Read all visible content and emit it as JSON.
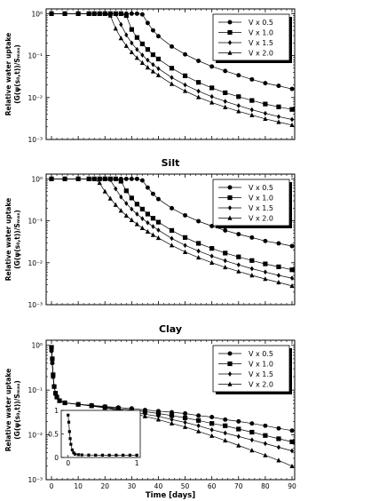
{
  "chart_data": [
    {
      "type": "line",
      "title": "",
      "xlabel": "",
      "ylabel": "Relative water uptake",
      "ylabel2": "(G(ψ(s₀,t))/Sₘₐₓ)",
      "yscale": "log",
      "xlim": [
        -2,
        91
      ],
      "ylim": [
        0.001,
        1.3
      ],
      "yticks": [
        "10⁻³",
        "10⁻²",
        "10⁻¹",
        "10⁰"
      ],
      "legend_position": "top-right",
      "x": [
        0,
        5,
        10,
        14,
        16,
        18,
        20,
        22,
        24,
        26,
        28,
        30,
        32,
        34,
        36,
        38,
        40,
        45,
        50,
        55,
        60,
        65,
        70,
        75,
        80,
        85,
        90
      ],
      "series": [
        {
          "name": "V x 0.5",
          "marker": "circle",
          "values": [
            1,
            1,
            1,
            1,
            1,
            1,
            1,
            1,
            1,
            1,
            1,
            1,
            1,
            0.96,
            0.6,
            0.4,
            0.29,
            0.165,
            0.107,
            0.075,
            0.055,
            0.043,
            0.034,
            0.027,
            0.022,
            0.019,
            0.016
          ]
        },
        {
          "name": "V x 1.0",
          "marker": "square",
          "values": [
            1,
            1,
            1,
            1,
            1,
            1,
            1,
            1,
            1,
            1,
            0.9,
            0.42,
            0.27,
            0.19,
            0.14,
            0.105,
            0.083,
            0.05,
            0.033,
            0.023,
            0.017,
            0.013,
            0.0105,
            0.0085,
            0.007,
            0.006,
            0.0052
          ]
        },
        {
          "name": "V x 1.5",
          "marker": "diamond",
          "values": [
            1,
            1,
            1,
            1,
            1,
            1,
            1,
            1,
            0.98,
            0.55,
            0.31,
            0.2,
            0.14,
            0.103,
            0.078,
            0.061,
            0.049,
            0.03,
            0.02,
            0.0142,
            0.0105,
            0.0081,
            0.0064,
            0.0051,
            0.0042,
            0.0035,
            0.003
          ]
        },
        {
          "name": "V x 2.0",
          "marker": "triangle",
          "values": [
            1,
            1,
            1,
            1,
            1,
            1,
            1,
            0.9,
            0.44,
            0.26,
            0.17,
            0.12,
            0.088,
            0.067,
            0.052,
            0.042,
            0.034,
            0.021,
            0.0143,
            0.0102,
            0.0076,
            0.0059,
            0.0047,
            0.0038,
            0.0031,
            0.0026,
            0.0022
          ]
        }
      ]
    },
    {
      "type": "line",
      "title": "Silt",
      "xlabel": "",
      "ylabel": "Relative water uptake",
      "ylabel2": "(G(ψ(s₀,t))/Sₘₐₓ)",
      "yscale": "log",
      "xlim": [
        -2,
        91
      ],
      "ylim": [
        0.001,
        1.3
      ],
      "yticks": [
        "10⁻³",
        "10⁻²",
        "10⁻¹",
        "10⁰"
      ],
      "legend_position": "top-right",
      "x": [
        0,
        5,
        10,
        14,
        16,
        18,
        20,
        22,
        24,
        26,
        28,
        30,
        32,
        34,
        36,
        38,
        40,
        45,
        50,
        55,
        60,
        65,
        70,
        75,
        80,
        85,
        90
      ],
      "series": [
        {
          "name": "V x 0.5",
          "marker": "circle",
          "values": [
            1,
            1,
            1,
            1,
            1,
            1,
            1,
            1,
            1,
            1,
            1,
            1,
            1,
            0.92,
            0.62,
            0.44,
            0.33,
            0.2,
            0.135,
            0.098,
            0.075,
            0.059,
            0.048,
            0.04,
            0.033,
            0.029,
            0.025
          ]
        },
        {
          "name": "V x 1.0",
          "marker": "square",
          "values": [
            1,
            1,
            1,
            1,
            1,
            1,
            1,
            1,
            1,
            0.88,
            0.52,
            0.35,
            0.25,
            0.19,
            0.145,
            0.115,
            0.093,
            0.059,
            0.04,
            0.029,
            0.022,
            0.017,
            0.0138,
            0.0113,
            0.0094,
            0.008,
            0.0068
          ]
        },
        {
          "name": "V x 1.5",
          "marker": "diamond",
          "values": [
            1,
            1,
            1,
            1,
            1,
            1,
            1,
            0.95,
            0.58,
            0.37,
            0.26,
            0.19,
            0.145,
            0.113,
            0.09,
            0.073,
            0.06,
            0.038,
            0.026,
            0.019,
            0.0144,
            0.0112,
            0.0089,
            0.0072,
            0.006,
            0.005,
            0.0043
          ]
        },
        {
          "name": "V x 2.0",
          "marker": "triangle",
          "values": [
            1,
            1,
            1,
            1,
            1,
            0.8,
            0.5,
            0.34,
            0.24,
            0.175,
            0.133,
            0.104,
            0.083,
            0.067,
            0.055,
            0.046,
            0.039,
            0.026,
            0.018,
            0.0133,
            0.01,
            0.0078,
            0.0062,
            0.005,
            0.0041,
            0.0034,
            0.0028
          ]
        }
      ]
    },
    {
      "type": "line",
      "title": "Clay",
      "xlabel": "Time [days]",
      "ylabel": "Relative water uptake",
      "ylabel2": "(G(ψ(s₀,t))/Sₘₐₓ)",
      "yscale": "log",
      "xlim": [
        -2,
        91
      ],
      "ylim": [
        0.001,
        1.3
      ],
      "yticks": [
        "10⁻³",
        "10⁻²",
        "10⁻¹",
        "10⁰"
      ],
      "xticks": [
        "0",
        "10",
        "20",
        "30",
        "40",
        "50",
        "60",
        "70",
        "80",
        "90"
      ],
      "legend_position": "top-right",
      "x": [
        0,
        0.3,
        0.6,
        1,
        1.5,
        2,
        3,
        5,
        10,
        15,
        20,
        25,
        30,
        35,
        40,
        45,
        50,
        55,
        60,
        65,
        70,
        75,
        80,
        85,
        90
      ],
      "series": [
        {
          "name": "V x 0.5",
          "marker": "circle",
          "values": [
            0.75,
            0.4,
            0.2,
            0.12,
            0.085,
            0.07,
            0.058,
            0.052,
            0.048,
            0.046,
            0.043,
            0.041,
            0.039,
            0.036,
            0.034,
            0.032,
            0.03,
            0.027,
            0.025,
            0.022,
            0.02,
            0.018,
            0.016,
            0.014,
            0.0125
          ]
        },
        {
          "name": "V x 1.0",
          "marker": "square",
          "values": [
            0.9,
            0.5,
            0.22,
            0.12,
            0.085,
            0.07,
            0.058,
            0.052,
            0.048,
            0.045,
            0.042,
            0.039,
            0.036,
            0.033,
            0.03,
            0.027,
            0.024,
            0.021,
            0.018,
            0.016,
            0.0135,
            0.0115,
            0.0097,
            0.0082,
            0.007
          ]
        },
        {
          "name": "V x 1.5",
          "marker": "diamond",
          "values": [
            0.85,
            0.45,
            0.2,
            0.12,
            0.085,
            0.07,
            0.058,
            0.052,
            0.048,
            0.045,
            0.041,
            0.037,
            0.033,
            0.029,
            0.026,
            0.022,
            0.019,
            0.016,
            0.013,
            0.011,
            0.0092,
            0.0077,
            0.0064,
            0.0053,
            0.0044
          ]
        },
        {
          "name": "V x 2.0",
          "marker": "triangle",
          "values": [
            0.8,
            0.42,
            0.2,
            0.12,
            0.085,
            0.07,
            0.058,
            0.052,
            0.048,
            0.044,
            0.04,
            0.035,
            0.031,
            0.026,
            0.022,
            0.018,
            0.015,
            0.012,
            0.0095,
            0.0075,
            0.0058,
            0.0045,
            0.0035,
            0.0027,
            0.002
          ]
        }
      ],
      "inset": {
        "type": "scatter",
        "xlim": [
          -0.1,
          1.05
        ],
        "ylim": [
          0,
          1
        ],
        "xticks": [
          "0",
          "1"
        ],
        "yticks": [
          "0",
          "0.5",
          "1"
        ],
        "x": [
          0,
          0.01,
          0.02,
          0.03,
          0.04,
          0.06,
          0.08,
          0.1,
          0.15,
          0.2,
          0.3,
          0.4,
          0.5,
          0.6,
          0.7,
          0.8,
          0.9,
          1.0
        ],
        "values": [
          0.9,
          0.75,
          0.55,
          0.4,
          0.28,
          0.16,
          0.1,
          0.07,
          0.06,
          0.055,
          0.052,
          0.05,
          0.05,
          0.05,
          0.05,
          0.05,
          0.05,
          0.05
        ]
      }
    }
  ]
}
